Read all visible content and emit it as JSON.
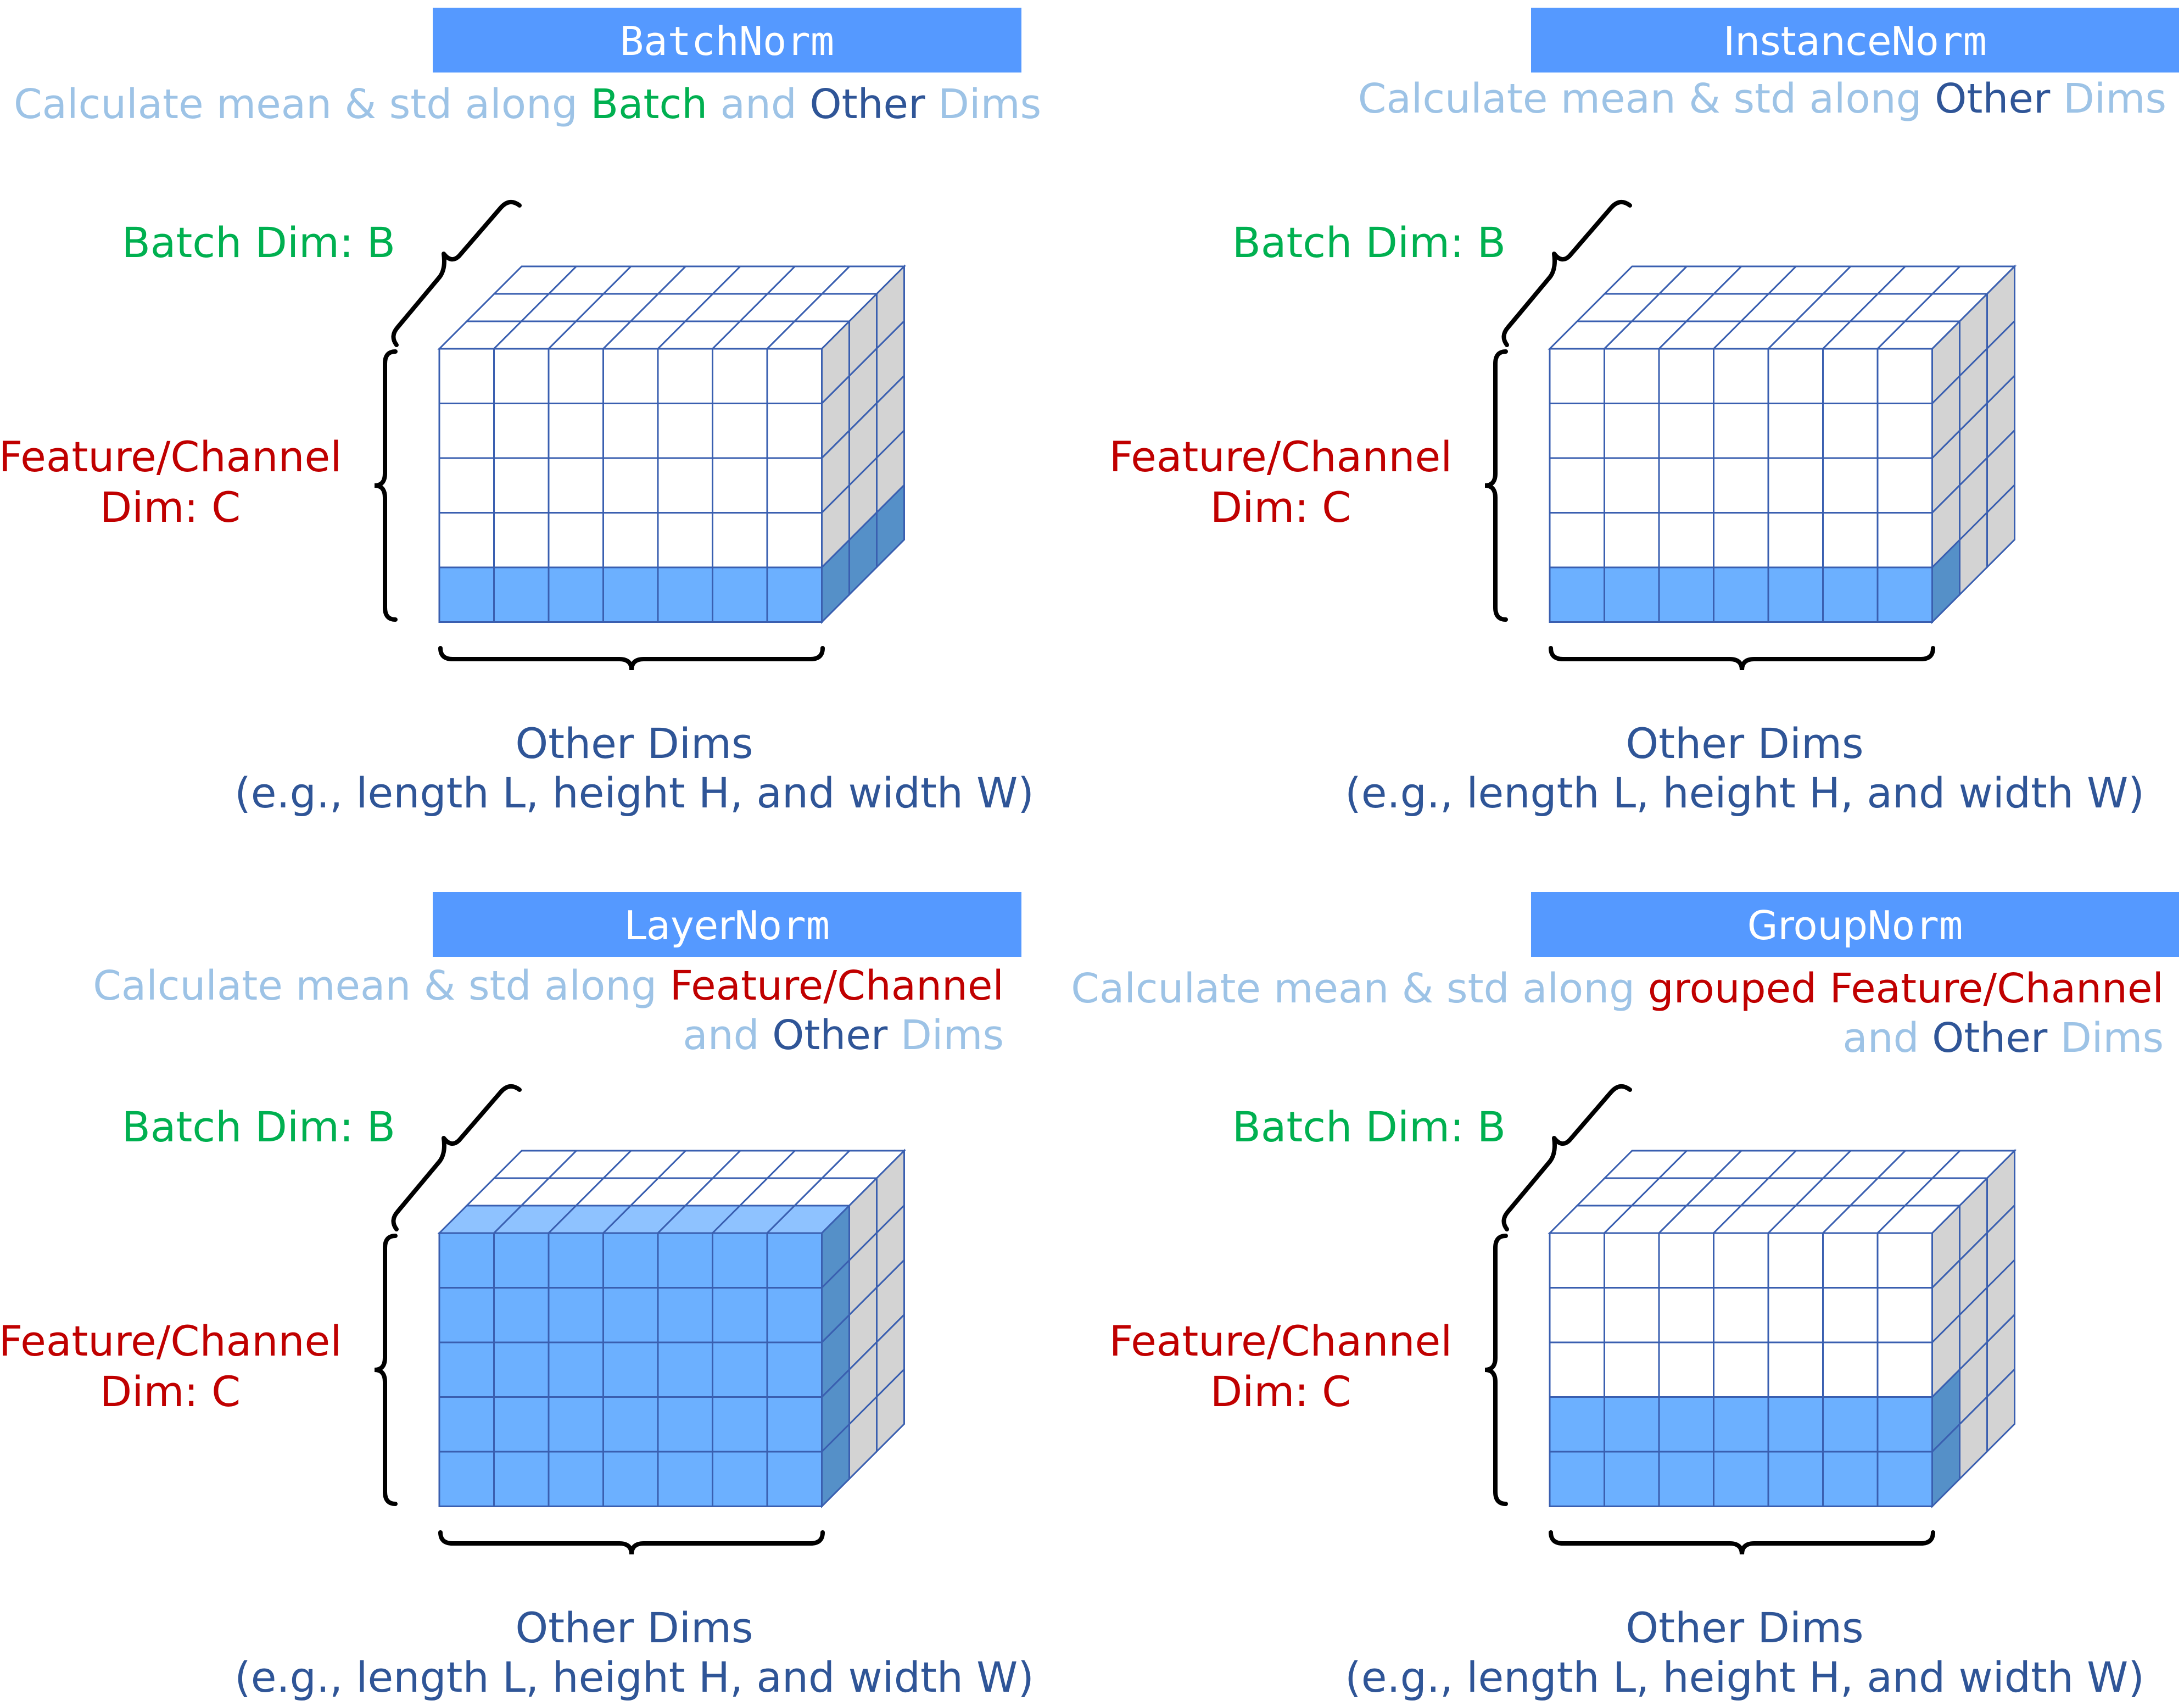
{
  "panels": [
    {
      "id": "batchnorm",
      "title_a": "BatchNorm",
      "title_b": "",
      "title_mono_all": true,
      "desc_lines": [
        [
          {
            "text": "Calculate mean & std along ",
            "tone": "light"
          },
          {
            "text": "Batch",
            "tone": "green"
          },
          {
            "text": " and ",
            "tone": "light"
          },
          {
            "text": "Other",
            "tone": "dark"
          },
          {
            "text": " Dims",
            "tone": "light"
          }
        ]
      ],
      "batch_label": "Batch Dim: B",
      "channel_label": [
        "Feature/Channel",
        "Dim: C"
      ],
      "other_label": [
        "Other Dims",
        "(e.g., length L, height H, and width W)"
      ],
      "highlight": "batchnorm"
    },
    {
      "id": "instancenorm",
      "title_a": "Instance",
      "title_b": "Norm",
      "title_mono_all": false,
      "desc_lines": [
        [
          {
            "text": "Calculate mean & std along ",
            "tone": "light"
          },
          {
            "text": "Other",
            "tone": "dark"
          },
          {
            "text": " Dims",
            "tone": "light"
          }
        ]
      ],
      "batch_label": "Batch Dim: B",
      "channel_label": [
        "Feature/Channel",
        "Dim: C"
      ],
      "other_label": [
        "Other Dims",
        "(e.g., length L, height H, and width W)"
      ],
      "highlight": "instancenorm"
    },
    {
      "id": "layernorm",
      "title_a": "Layer",
      "title_b": "Norm",
      "title_mono_all": false,
      "desc_lines": [
        [
          {
            "text": "Calculate mean & std along ",
            "tone": "light"
          },
          {
            "text": "Feature/Channel",
            "tone": "red"
          }
        ],
        [
          {
            "text": "and ",
            "tone": "light"
          },
          {
            "text": "Other",
            "tone": "dark"
          },
          {
            "text": " Dims",
            "tone": "light"
          }
        ]
      ],
      "batch_label": "Batch Dim: B",
      "channel_label": [
        "Feature/Channel",
        "Dim: C"
      ],
      "other_label": [
        "Other Dims",
        "(e.g., length L, height H, and width W)"
      ],
      "highlight": "layernorm"
    },
    {
      "id": "groupnorm",
      "title_a": "Group",
      "title_b": "Norm",
      "title_mono_all": false,
      "desc_lines": [
        [
          {
            "text": "Calculate mean & std along ",
            "tone": "light"
          },
          {
            "text": "grouped Feature/Channel",
            "tone": "red"
          }
        ],
        [
          {
            "text": "and ",
            "tone": "light"
          },
          {
            "text": "Other",
            "tone": "dark"
          },
          {
            "text": " Dims",
            "tone": "light"
          }
        ]
      ],
      "batch_label": "Batch Dim: B",
      "channel_label": [
        "Feature/Channel",
        "Dim: C"
      ],
      "other_label": [
        "Other Dims",
        "(e.g., length L, height H, and width W)"
      ],
      "highlight": "groupnorm"
    }
  ],
  "grid": {
    "columns": 7,
    "rows": 5,
    "depth": 3
  },
  "colors": {
    "title_bg": "#5599ff",
    "title_text": "#ffffff",
    "light": "#9dc3e6",
    "green": "#00b050",
    "dark": "#2f5597",
    "red": "#c00000",
    "grid_line": "#3a5fb0",
    "cell_white": "#ffffff",
    "side_gray": "#d3d3d3",
    "fill_front": "#6cb0ff",
    "fill_top": "#8ec2ff",
    "fill_side": "#5590c8",
    "brace": "#000000"
  }
}
